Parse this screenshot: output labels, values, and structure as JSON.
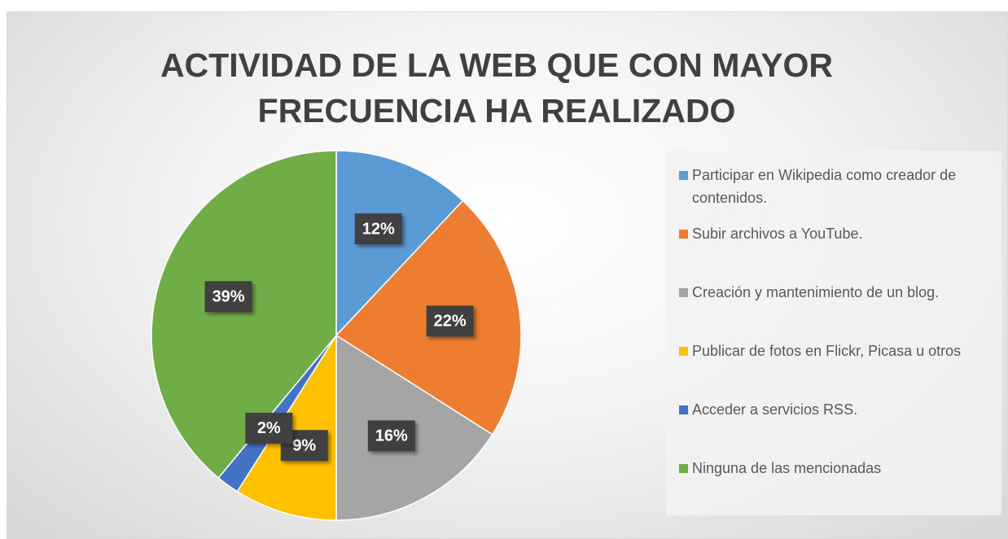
{
  "chart_data": {
    "type": "pie",
    "title": "ACTIVIDAD DE LA WEB QUE CON MAYOR FRECUENCIA HA REALIZADO",
    "categories": [
      "Participar en Wikipedia como creador de contenidos.",
      "Subir archivos a YouTube.",
      "Creación y mantenimiento de un blog.",
      "Publicar de fotos en Flickr, Picasa u otros",
      "Acceder a servicios RSS.",
      "Ninguna de las mencionadas"
    ],
    "values": [
      12,
      22,
      16,
      9,
      2,
      39
    ],
    "value_labels": [
      "12%",
      "22%",
      "16%",
      "9%",
      "2%",
      "39%"
    ],
    "colors": [
      "#5b9bd5",
      "#ed7d31",
      "#a5a5a5",
      "#ffc000",
      "#4472c4",
      "#70ad47"
    ],
    "legend": "right"
  }
}
